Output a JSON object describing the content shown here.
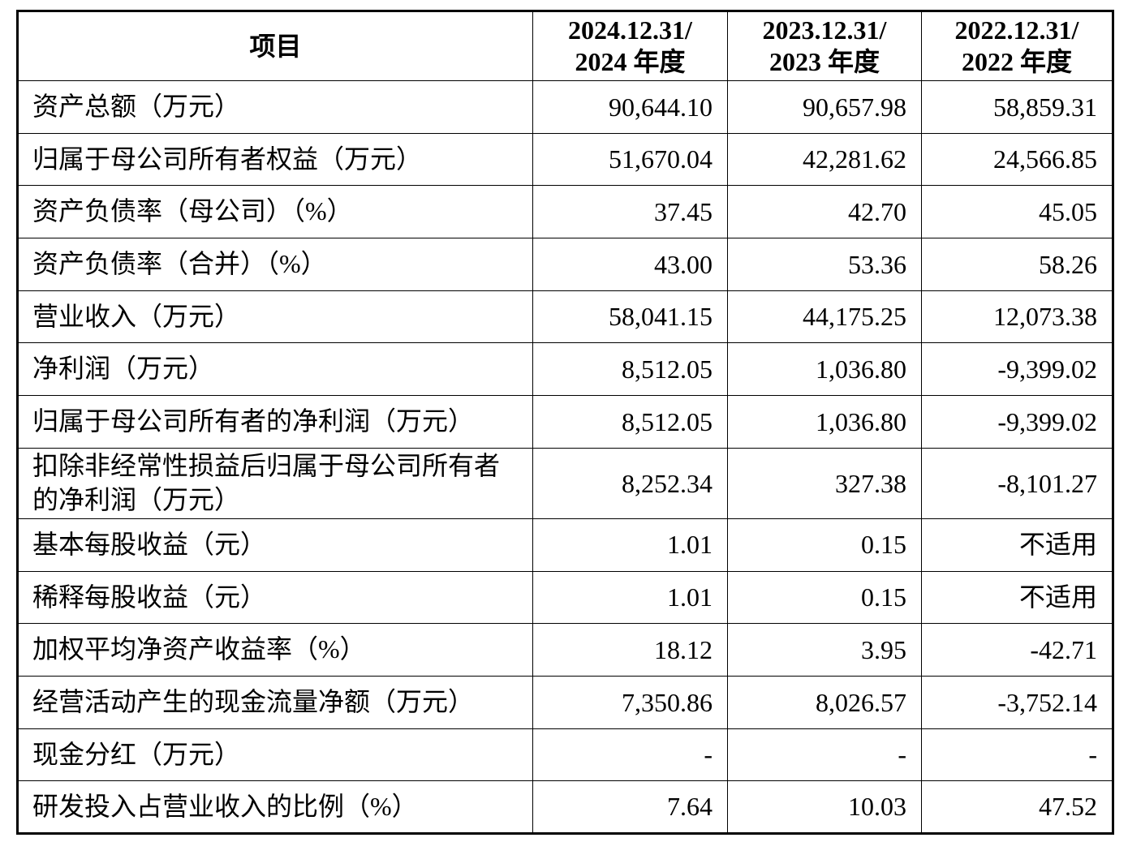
{
  "table": {
    "headers": [
      "项目",
      "2024.12.31/\n2024 年度",
      "2023.12.31/\n2023 年度",
      "2022.12.31/\n2022 年度"
    ],
    "rows": [
      {
        "label": "资产总额（万元）",
        "values": [
          "90,644.10",
          "90,657.98",
          "58,859.31"
        ]
      },
      {
        "label": "归属于母公司所有者权益（万元）",
        "values": [
          "51,670.04",
          "42,281.62",
          "24,566.85"
        ]
      },
      {
        "label": "资产负债率（母公司）（%）",
        "values": [
          "37.45",
          "42.70",
          "45.05"
        ]
      },
      {
        "label": "资产负债率（合并）（%）",
        "values": [
          "43.00",
          "53.36",
          "58.26"
        ]
      },
      {
        "label": "营业收入（万元）",
        "values": [
          "58,041.15",
          "44,175.25",
          "12,073.38"
        ]
      },
      {
        "label": "净利润（万元）",
        "values": [
          "8,512.05",
          "1,036.80",
          "-9,399.02"
        ]
      },
      {
        "label": "归属于母公司所有者的净利润（万元）",
        "values": [
          "8,512.05",
          "1,036.80",
          "-9,399.02"
        ]
      },
      {
        "label": "扣除非经常性损益后归属于母公司所有者\n的净利润（万元）",
        "values": [
          "8,252.34",
          "327.38",
          "-8,101.27"
        ]
      },
      {
        "label": "基本每股收益（元）",
        "values": [
          "1.01",
          "0.15",
          "不适用"
        ]
      },
      {
        "label": "稀释每股收益（元）",
        "values": [
          "1.01",
          "0.15",
          "不适用"
        ]
      },
      {
        "label": "加权平均净资产收益率（%）",
        "values": [
          "18.12",
          "3.95",
          "-42.71"
        ]
      },
      {
        "label": "经营活动产生的现金流量净额（万元）",
        "values": [
          "7,350.86",
          "8,026.57",
          "-3,752.14"
        ]
      },
      {
        "label": "现金分红（万元）",
        "values": [
          "-",
          "-",
          "-"
        ]
      },
      {
        "label": "研发投入占营业收入的比例（%）",
        "values": [
          "7.64",
          "10.03",
          "47.52"
        ]
      }
    ]
  }
}
